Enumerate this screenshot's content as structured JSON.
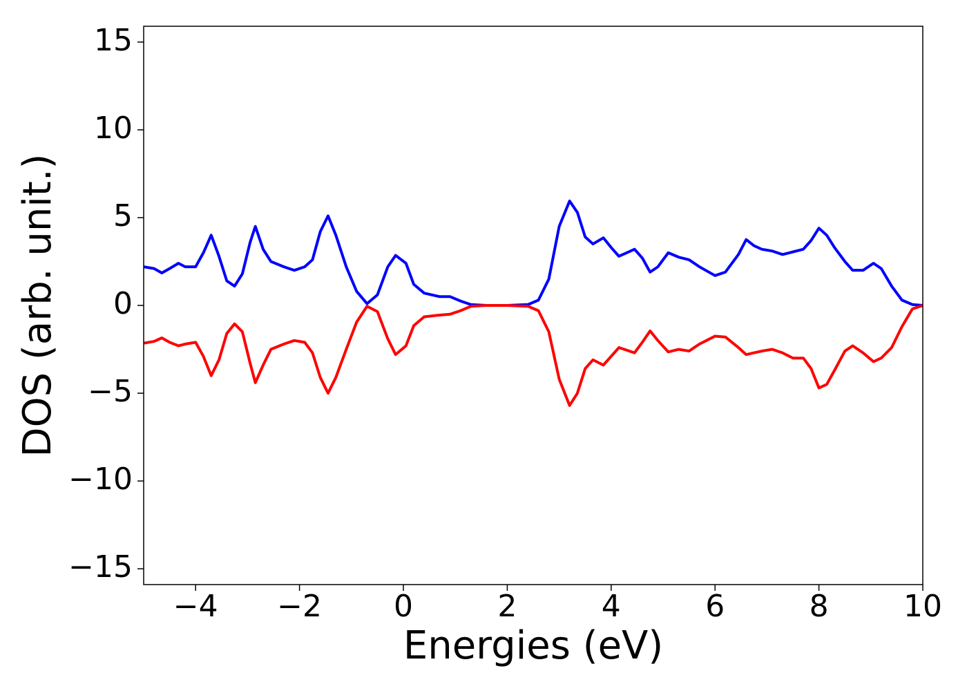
{
  "chart_data": {
    "type": "line",
    "xlabel": "Energies (eV)",
    "ylabel": "DOS (arb. unit.)",
    "x": [
      -5,
      -4.8,
      -4.65,
      -4.5,
      -4.33,
      -4.2,
      -4,
      -3.85,
      -3.7,
      -3.55,
      -3.4,
      -3.25,
      -3.1,
      -2.95,
      -2.85,
      -2.7,
      -2.55,
      -2.3,
      -2.1,
      -1.9,
      -1.75,
      -1.6,
      -1.45,
      -1.3,
      -1.1,
      -0.9,
      -0.7,
      -0.5,
      -0.3,
      -0.15,
      0.05,
      0.2,
      0.4,
      0.7,
      0.9,
      1.1,
      1.3,
      1.6,
      2,
      2.4,
      2.6,
      2.8,
      3,
      3.2,
      3.35,
      3.5,
      3.65,
      3.85,
      4,
      4.15,
      4.3,
      4.45,
      4.6,
      4.75,
      4.9,
      5.1,
      5.3,
      5.5,
      5.7,
      6,
      6.2,
      6.45,
      6.6,
      6.75,
      6.9,
      7.1,
      7.3,
      7.5,
      7.7,
      7.85,
      8,
      8.15,
      8.3,
      8.5,
      8.65,
      8.85,
      9.05,
      9.2,
      9.4,
      9.6,
      9.8,
      10
    ],
    "series": [
      {
        "color": "#0000ff",
        "values": [
          2.2,
          2.1,
          1.85,
          2.1,
          2.4,
          2.2,
          2.2,
          3.0,
          4.0,
          2.8,
          1.4,
          1.1,
          1.8,
          3.6,
          4.5,
          3.2,
          2.5,
          2.2,
          2.0,
          2.2,
          2.6,
          4.2,
          5.1,
          4.0,
          2.2,
          0.8,
          0.1,
          0.6,
          2.2,
          2.85,
          2.4,
          1.2,
          0.7,
          0.5,
          0.5,
          0.25,
          0.05,
          0,
          0,
          0.05,
          0.3,
          1.5,
          4.5,
          5.95,
          5.3,
          3.9,
          3.5,
          3.85,
          3.3,
          2.8,
          3.0,
          3.2,
          2.7,
          1.9,
          2.2,
          3.0,
          2.75,
          2.6,
          2.2,
          1.7,
          1.9,
          2.9,
          3.75,
          3.4,
          3.2,
          3.1,
          2.9,
          3.05,
          3.2,
          3.7,
          4.4,
          4.0,
          3.3,
          2.5,
          2.0,
          2.0,
          2.4,
          2.1,
          1.1,
          0.3,
          0.05,
          0
        ]
      },
      {
        "color": "#ff0000",
        "values": [
          -2.15,
          -2.05,
          -1.85,
          -2.1,
          -2.3,
          -2.2,
          -2.1,
          -2.9,
          -4.0,
          -3.1,
          -1.6,
          -1.05,
          -1.5,
          -3.3,
          -4.4,
          -3.4,
          -2.5,
          -2.2,
          -2.0,
          -2.1,
          -2.7,
          -4.1,
          -5.0,
          -4.1,
          -2.5,
          -0.95,
          -0.05,
          -0.35,
          -1.9,
          -2.8,
          -2.3,
          -1.15,
          -0.65,
          -0.55,
          -0.5,
          -0.3,
          -0.05,
          0,
          0,
          -0.05,
          -0.3,
          -1.5,
          -4.2,
          -5.7,
          -5.0,
          -3.6,
          -3.1,
          -3.4,
          -2.9,
          -2.4,
          -2.55,
          -2.7,
          -2.1,
          -1.45,
          -2.0,
          -2.65,
          -2.5,
          -2.6,
          -2.2,
          -1.75,
          -1.8,
          -2.4,
          -2.8,
          -2.7,
          -2.6,
          -2.5,
          -2.7,
          -3.0,
          -3.0,
          -3.6,
          -4.7,
          -4.5,
          -3.7,
          -2.6,
          -2.3,
          -2.7,
          -3.2,
          -3.0,
          -2.4,
          -1.2,
          -0.2,
          0
        ]
      }
    ],
    "xlim": [
      -5,
      10
    ],
    "xticks": [
      {
        "value": -4,
        "label": "−4"
      },
      {
        "value": -2,
        "label": "−2"
      },
      0,
      2,
      4,
      6,
      8,
      10
    ],
    "ylim": [
      -15.9,
      15.9
    ],
    "yticks": [
      {
        "value": -15,
        "label": "−15"
      },
      {
        "value": -10,
        "label": "−10"
      },
      {
        "value": -5,
        "label": "−5"
      },
      0,
      5,
      10,
      15
    ],
    "grid": false
  }
}
